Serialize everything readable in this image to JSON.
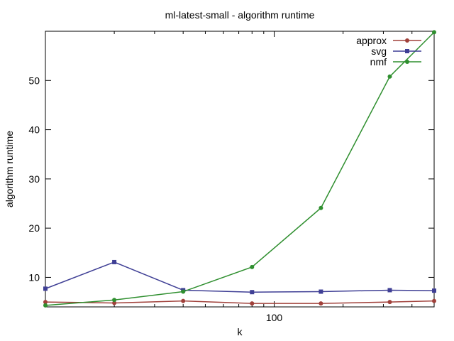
{
  "chart_data": {
    "type": "line",
    "title": "ml-latest-small - algorithm runtime",
    "xlabel": "k",
    "ylabel": "algorithm runtime",
    "x_scale": "log",
    "x": [
      10,
      20,
      40,
      80,
      160,
      320,
      500
    ],
    "xlim": [
      10,
      500
    ],
    "ylim": [
      4,
      60
    ],
    "xticks": [
      100
    ],
    "yticks": [
      10,
      20,
      30,
      40,
      50
    ],
    "grid": false,
    "legend_position": "top-right",
    "series": [
      {
        "name": "approx",
        "color": "#a0403a",
        "marker": "circle",
        "values": [
          5.0,
          4.8,
          5.2,
          4.7,
          4.7,
          5.0,
          5.2
        ]
      },
      {
        "name": "svg",
        "color": "#3f3f95",
        "marker": "square",
        "values": [
          7.7,
          13.1,
          7.4,
          7.0,
          7.1,
          7.4,
          7.3
        ]
      },
      {
        "name": "nmf",
        "color": "#2f8f2f",
        "marker": "circle",
        "values": [
          4.3,
          5.4,
          7.1,
          12.1,
          24.1,
          50.8,
          59.8
        ]
      }
    ]
  }
}
